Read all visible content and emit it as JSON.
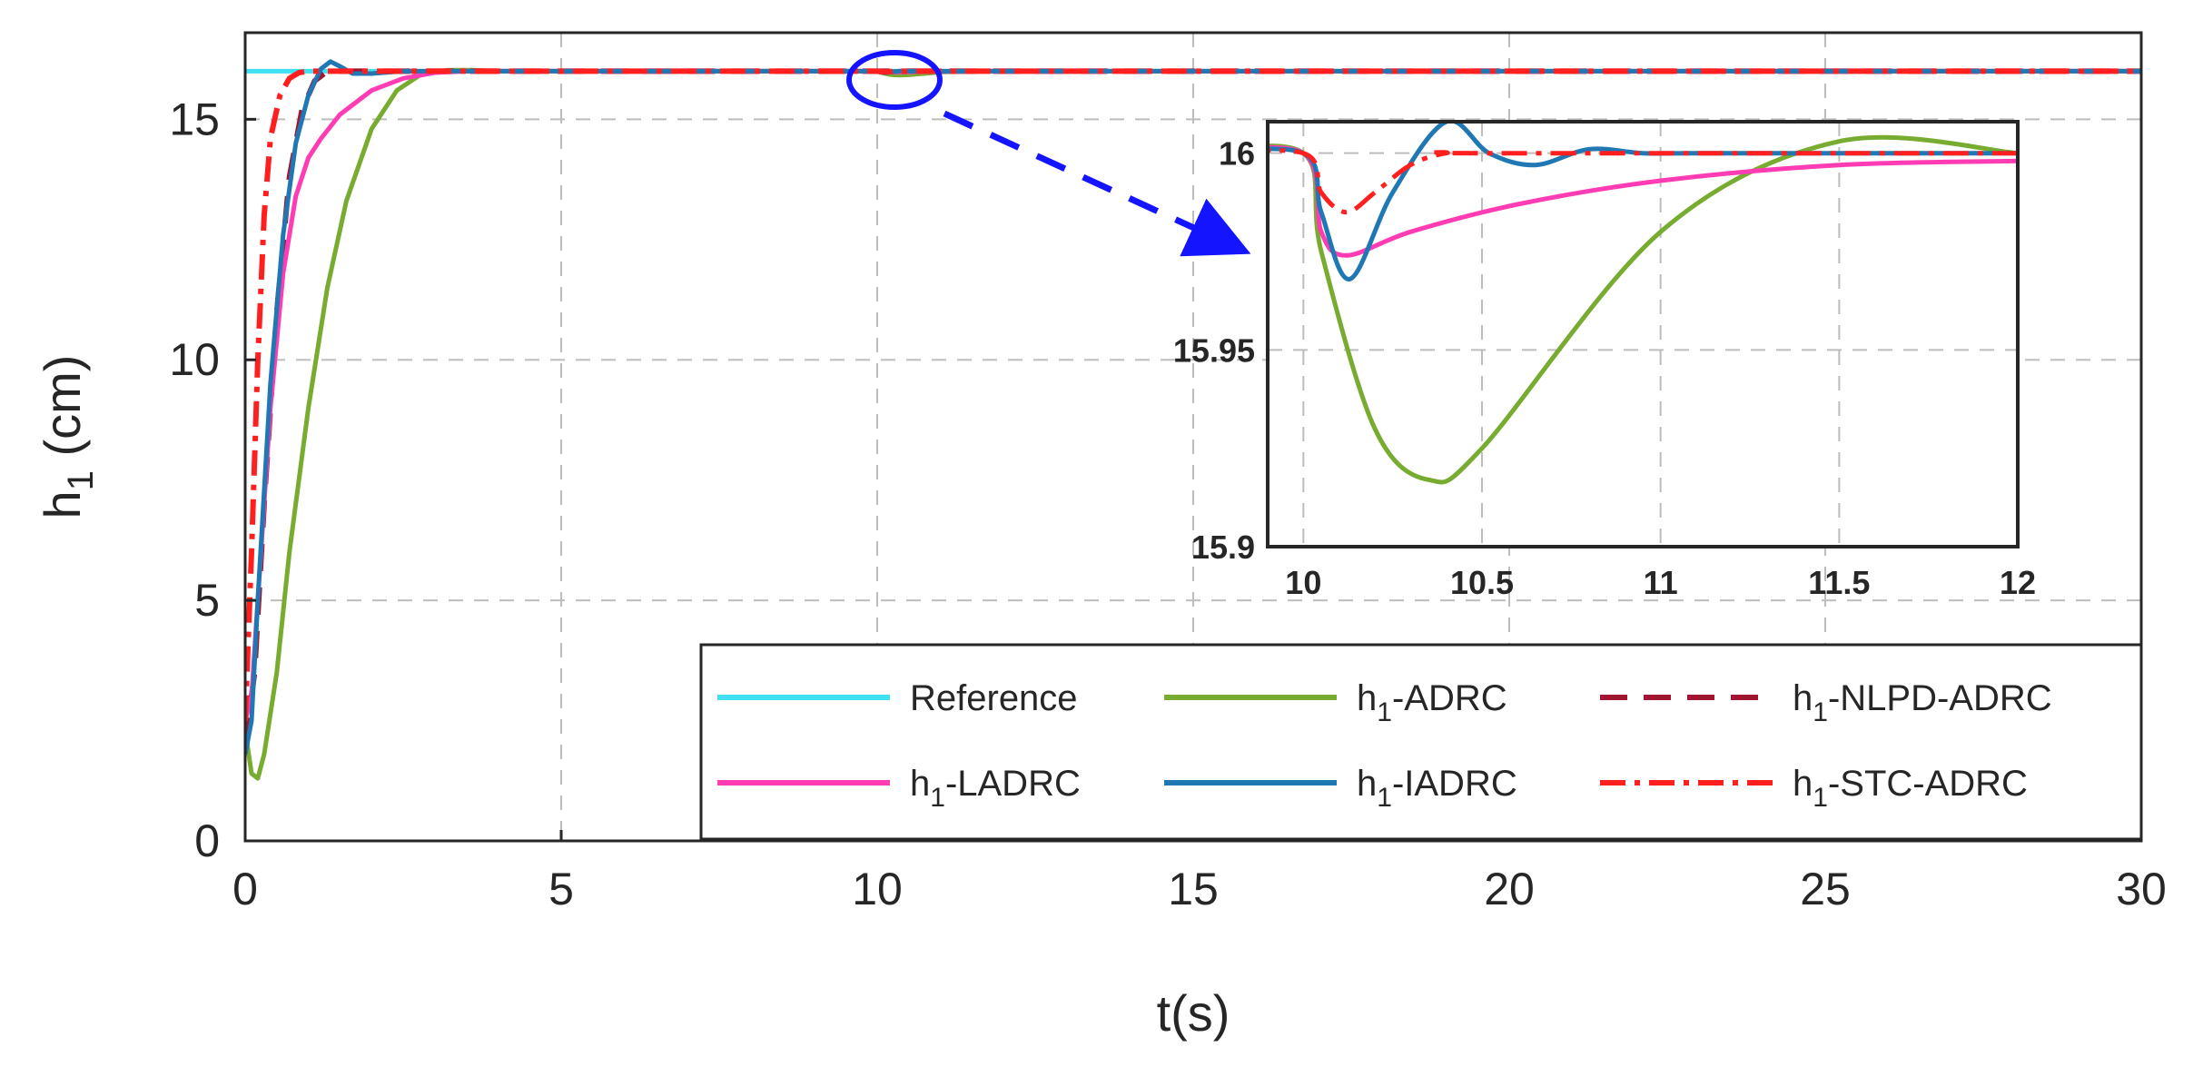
{
  "chart_data": {
    "type": "line",
    "title": "",
    "xlabel": "t(s)",
    "ylabel": "h1 (cm)",
    "ylabel_main": "h",
    "ylabel_sub": "1",
    "ylabel_unit": " (cm)",
    "xlim": [
      0,
      30
    ],
    "ylim": [
      0,
      16.8
    ],
    "xticks": [
      "0",
      "5",
      "10",
      "15",
      "20",
      "25",
      "30"
    ],
    "yticks": [
      "0",
      "5",
      "10",
      "15"
    ],
    "grid": true,
    "legend_position": "bottom-right",
    "series": [
      {
        "name": "Reference",
        "name_prefix": "",
        "name_sub": "",
        "name_suffix": "Reference",
        "color": "#3fe0ef",
        "style": "solid",
        "x": [
          0,
          30
        ],
        "y": [
          16,
          16
        ]
      },
      {
        "name": "h1-ADRC",
        "name_prefix": "h",
        "name_sub": "1",
        "name_suffix": "-ADRC",
        "color": "#77ac30",
        "style": "solid",
        "x": [
          0,
          0.1,
          0.2,
          0.3,
          0.5,
          0.7,
          1.0,
          1.3,
          1.6,
          2.0,
          2.4,
          2.8,
          3.2,
          3.6,
          4.0,
          5,
          10,
          10.05,
          10.2,
          10.35,
          10.5,
          11.0,
          11.5,
          12,
          30
        ],
        "y": [
          2.3,
          1.4,
          1.3,
          1.8,
          3.5,
          6.0,
          9.0,
          11.5,
          13.3,
          14.8,
          15.6,
          15.95,
          16.02,
          16.02,
          16.0,
          16.0,
          16.0,
          15.975,
          15.93,
          15.917,
          15.925,
          15.98,
          16.003,
          16.0,
          16.0
        ]
      },
      {
        "name": "h1-NLPD-ADRC",
        "name_prefix": "h",
        "name_sub": "1",
        "name_suffix": "-NLPD-ADRC",
        "color": "#a2142f",
        "style": "dashed",
        "x": [
          0,
          0.15,
          0.3,
          0.5,
          0.7,
          0.9,
          1.1,
          1.3,
          1.6,
          2.0,
          30
        ],
        "y": [
          2.0,
          3.5,
          7.0,
          11.0,
          13.8,
          15.2,
          15.8,
          16.0,
          16.0,
          16.0,
          16.0
        ]
      },
      {
        "name": "h1-LADRC",
        "name_prefix": "h",
        "name_sub": "1",
        "name_suffix": "-LADRC",
        "color": "#ff3cb4",
        "style": "solid",
        "x": [
          0,
          0.1,
          0.2,
          0.4,
          0.6,
          0.8,
          1.0,
          1.2,
          1.5,
          2.0,
          2.5,
          3.0,
          3.5,
          10,
          10.05,
          10.12,
          10.3,
          10.6,
          11.0,
          11.5,
          12,
          30
        ],
        "y": [
          2.5,
          3.0,
          5.0,
          9.0,
          11.8,
          13.4,
          14.2,
          14.6,
          15.1,
          15.6,
          15.85,
          15.97,
          16.0,
          16.0,
          15.98,
          15.974,
          15.98,
          15.987,
          15.993,
          15.997,
          15.998,
          16.0
        ]
      },
      {
        "name": "h1-IADRC",
        "name_prefix": "h",
        "name_sub": "1",
        "name_suffix": "-IADRC",
        "color": "#1f77b4",
        "style": "solid",
        "x": [
          0,
          0.1,
          0.2,
          0.4,
          0.6,
          0.8,
          1.0,
          1.2,
          1.35,
          1.5,
          1.7,
          2.0,
          2.5,
          10,
          10.05,
          10.13,
          10.25,
          10.4,
          10.52,
          10.65,
          10.8,
          10.95,
          11.1,
          12,
          30
        ],
        "y": [
          1.8,
          2.5,
          5.0,
          9.5,
          12.6,
          14.5,
          15.5,
          16.05,
          16.2,
          16.1,
          15.95,
          15.95,
          16.0,
          16.0,
          15.985,
          15.968,
          15.99,
          16.008,
          16.0,
          15.997,
          16.001,
          16.0,
          16.0,
          16.0,
          16.0
        ]
      },
      {
        "name": "h1-STC-ADRC",
        "name_prefix": "h",
        "name_sub": "1",
        "name_suffix": "-STC-ADRC",
        "color": "#ff1f1f",
        "style": "dashdot",
        "x": [
          0,
          0.1,
          0.2,
          0.3,
          0.4,
          0.55,
          0.7,
          0.85,
          1.0,
          1.5,
          10,
          10.05,
          10.12,
          10.2,
          10.3,
          10.4,
          10.5,
          12,
          30
        ],
        "y": [
          2.5,
          6.0,
          10.0,
          13.0,
          14.6,
          15.5,
          15.85,
          15.97,
          16.0,
          16.0,
          16.0,
          15.99,
          15.985,
          15.99,
          15.997,
          16.0,
          16.0,
          16.0,
          16.0
        ]
      }
    ],
    "inset": {
      "xlim": [
        9.9,
        12
      ],
      "ylim": [
        15.9,
        16.008
      ],
      "xticks": [
        "10",
        "10.5",
        "11",
        "11.5",
        "12"
      ],
      "yticks": [
        "15.9",
        "15.95",
        "16"
      ],
      "zoom_center": [
        10.2,
        16
      ]
    }
  }
}
